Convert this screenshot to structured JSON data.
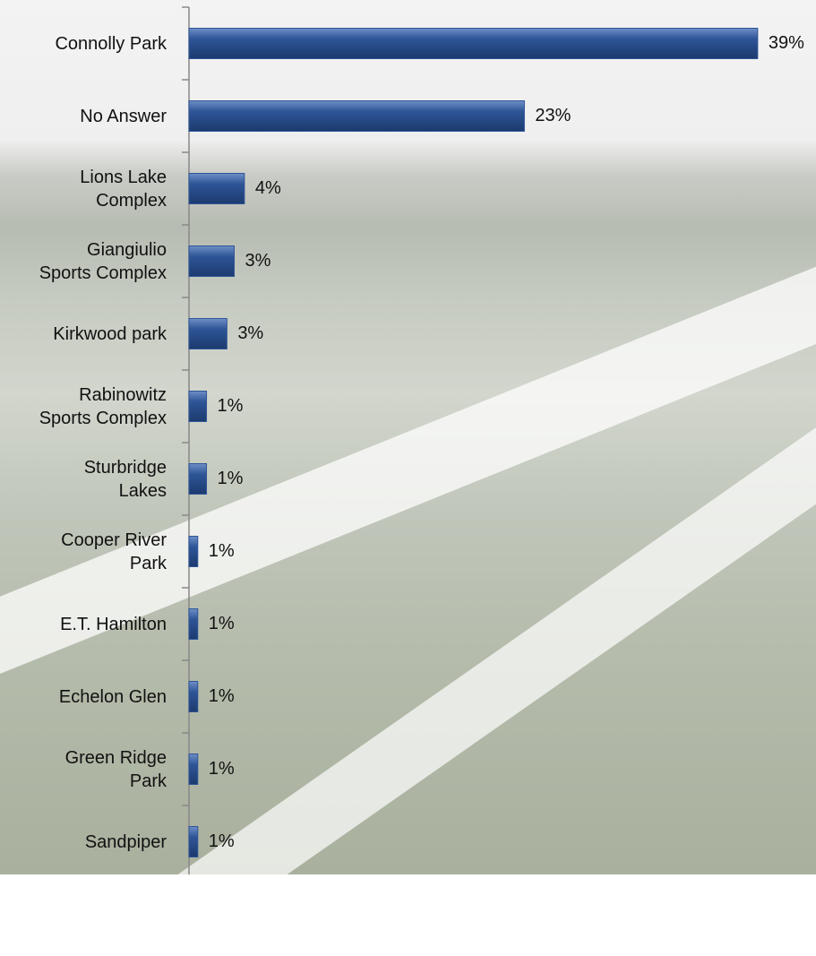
{
  "chart_data": {
    "type": "bar",
    "orientation": "horizontal",
    "categories": [
      "Connolly Park",
      "No Answer",
      "Lions Lake\nComplex",
      "Giangiulio\nSports Complex",
      "Kirkwood park",
      "Rabinowitz\nSports Complex",
      "Sturbridge\nLakes",
      "Cooper River\nPark",
      "E.T. Hamilton",
      "Echelon Glen",
      "Green Ridge\nPark",
      "Sandpiper"
    ],
    "values": [
      39,
      23,
      3.8,
      3.1,
      2.6,
      1.2,
      1.2,
      0.6,
      0.6,
      0.6,
      0.6,
      0.6
    ],
    "value_labels": [
      "39%",
      "23%",
      "4%",
      "3%",
      "3%",
      "1%",
      "1%",
      "1%",
      "1%",
      "1%",
      "1%",
      "1%"
    ],
    "color": "#2e5597",
    "xlim": [
      0,
      43
    ]
  }
}
